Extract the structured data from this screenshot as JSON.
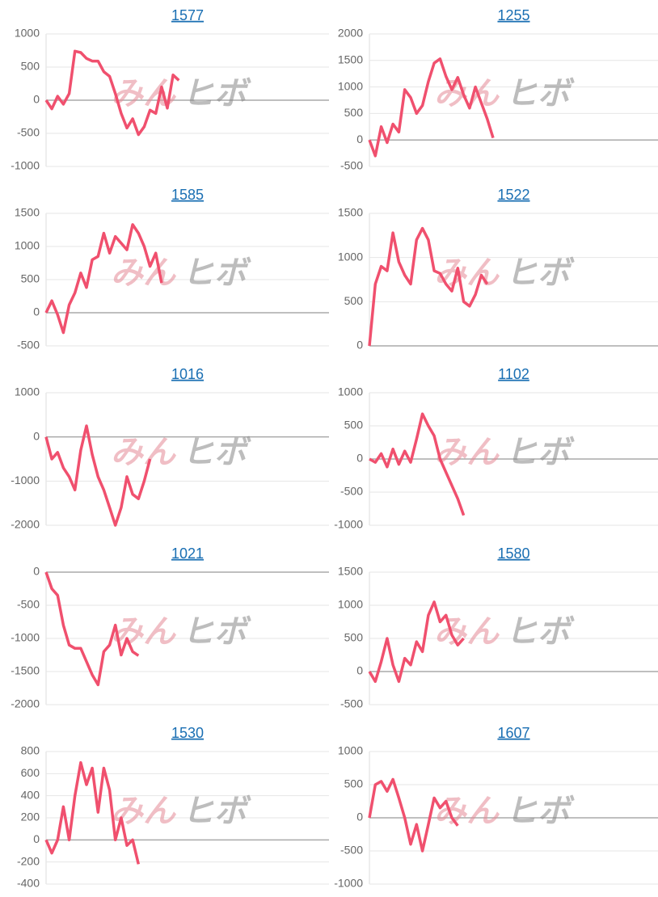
{
  "watermark": [
    "みん",
    "ヒボ"
  ],
  "chart_data": [
    {
      "type": "line",
      "title": "1577",
      "color": "#f0506e",
      "ylim": [
        -1000,
        1000
      ],
      "yticks": [
        -1000,
        -500,
        0,
        500,
        1000
      ],
      "values": [
        0,
        -130,
        60,
        -60,
        100,
        740,
        720,
        630,
        590,
        590,
        430,
        360,
        100,
        -200,
        -420,
        -280,
        -520,
        -400,
        -150,
        -200,
        200,
        -120,
        380,
        300,
        null,
        null,
        null,
        null,
        null,
        null,
        null,
        null,
        null,
        null,
        null,
        null,
        null,
        null,
        null,
        null,
        null,
        null,
        null,
        null,
        null,
        null,
        null,
        null,
        null,
        null
      ]
    },
    {
      "type": "line",
      "title": "1255",
      "color": "#f0506e",
      "ylim": [
        -500,
        2000
      ],
      "yticks": [
        -500,
        0,
        500,
        1000,
        1500,
        2000
      ],
      "values": [
        0,
        -300,
        250,
        -50,
        300,
        150,
        950,
        800,
        500,
        650,
        1100,
        1450,
        1530,
        1200,
        950,
        1180,
        850,
        600,
        1000,
        700,
        400,
        40,
        null,
        null,
        null,
        null,
        null,
        null,
        null,
        null,
        null,
        null,
        null,
        null,
        null,
        null,
        null,
        null,
        null,
        null,
        null,
        null,
        null,
        null,
        null,
        null,
        null,
        null,
        null,
        null
      ]
    },
    {
      "type": "line",
      "title": "1585",
      "color": "#f0506e",
      "ylim": [
        -500,
        1500
      ],
      "yticks": [
        -500,
        0,
        500,
        1000,
        1500
      ],
      "values": [
        0,
        180,
        -30,
        -300,
        120,
        300,
        600,
        380,
        800,
        850,
        1200,
        900,
        1150,
        1050,
        950,
        1330,
        1200,
        1000,
        700,
        900,
        450,
        null,
        null,
        null,
        null,
        null,
        null,
        null,
        null,
        null,
        null,
        null,
        null,
        null,
        null,
        null,
        null,
        null,
        null,
        null,
        null,
        null,
        null,
        null,
        null,
        null,
        null,
        null,
        null,
        null
      ]
    },
    {
      "type": "line",
      "title": "1522",
      "color": "#f0506e",
      "ylim": [
        0,
        1500
      ],
      "yticks": [
        0,
        500,
        1000,
        1500
      ],
      "values": [
        0,
        700,
        900,
        850,
        1280,
        950,
        800,
        700,
        1200,
        1330,
        1200,
        850,
        820,
        700,
        620,
        880,
        500,
        450,
        580,
        800,
        700,
        null,
        null,
        null,
        null,
        null,
        null,
        null,
        null,
        null,
        null,
        null,
        null,
        null,
        null,
        null,
        null,
        null,
        null,
        null,
        null,
        null,
        null,
        null,
        null,
        null,
        null,
        null,
        null,
        null
      ]
    },
    {
      "type": "line",
      "title": "1016",
      "color": "#f0506e",
      "ylim": [
        -2000,
        1000
      ],
      "yticks": [
        -2000,
        -1000,
        0,
        1000
      ],
      "values": [
        0,
        -500,
        -350,
        -700,
        -900,
        -1200,
        -300,
        250,
        -400,
        -900,
        -1200,
        -1600,
        -2000,
        -1600,
        -900,
        -1300,
        -1400,
        -1000,
        -500,
        null,
        null,
        null,
        null,
        null,
        null,
        null,
        null,
        null,
        null,
        null,
        null,
        null,
        null,
        null,
        null,
        null,
        null,
        null,
        null,
        null,
        null,
        null,
        null,
        null,
        null,
        null,
        null,
        null,
        null,
        null
      ]
    },
    {
      "type": "line",
      "title": "1102",
      "color": "#f0506e",
      "ylim": [
        -1000,
        1000
      ],
      "yticks": [
        -1000,
        -500,
        0,
        500,
        1000
      ],
      "values": [
        0,
        -50,
        80,
        -120,
        150,
        -80,
        120,
        -50,
        300,
        680,
        500,
        350,
        0,
        -200,
        -400,
        -600,
        -850,
        null,
        null,
        null,
        null,
        null,
        null,
        null,
        null,
        null,
        null,
        null,
        null,
        null,
        null,
        null,
        null,
        null,
        null,
        null,
        null,
        null,
        null,
        null,
        null,
        null,
        null,
        null,
        null,
        null,
        null,
        null,
        null,
        null
      ]
    },
    {
      "type": "line",
      "title": "1021",
      "color": "#f0506e",
      "ylim": [
        -2000,
        0
      ],
      "yticks": [
        -2000,
        -1500,
        -1000,
        -500,
        0
      ],
      "values": [
        0,
        -250,
        -350,
        -800,
        -1100,
        -1150,
        -1150,
        -1350,
        -1550,
        -1700,
        -1200,
        -1100,
        -800,
        -1250,
        -1000,
        -1200,
        -1260,
        null,
        null,
        null,
        null,
        null,
        null,
        null,
        null,
        null,
        null,
        null,
        null,
        null,
        null,
        null,
        null,
        null,
        null,
        null,
        null,
        null,
        null,
        null,
        null,
        null,
        null,
        null,
        null,
        null,
        null,
        null,
        null,
        null
      ]
    },
    {
      "type": "line",
      "title": "1580",
      "color": "#f0506e",
      "ylim": [
        -500,
        1500
      ],
      "yticks": [
        -500,
        0,
        500,
        1000,
        1500
      ],
      "values": [
        0,
        -150,
        150,
        500,
        100,
        -150,
        200,
        100,
        450,
        300,
        850,
        1050,
        750,
        850,
        550,
        400,
        500,
        null,
        null,
        null,
        null,
        null,
        null,
        null,
        null,
        null,
        null,
        null,
        null,
        null,
        null,
        null,
        null,
        null,
        null,
        null,
        null,
        null,
        null,
        null,
        null,
        null,
        null,
        null,
        null,
        null,
        null,
        null,
        null,
        null
      ]
    },
    {
      "type": "line",
      "title": "1530",
      "color": "#f0506e",
      "ylim": [
        -400,
        800
      ],
      "yticks": [
        -400,
        -200,
        0,
        200,
        400,
        600,
        800
      ],
      "values": [
        0,
        -120,
        0,
        300,
        0,
        400,
        700,
        500,
        650,
        250,
        650,
        450,
        0,
        200,
        -50,
        0,
        -220,
        null,
        null,
        null,
        null,
        null,
        null,
        null,
        null,
        null,
        null,
        null,
        null,
        null,
        null,
        null,
        null,
        null,
        null,
        null,
        null,
        null,
        null,
        null,
        null,
        null,
        null,
        null,
        null,
        null,
        null,
        null,
        null,
        null
      ]
    },
    {
      "type": "line",
      "title": "1607",
      "color": "#f0506e",
      "ylim": [
        -1000,
        1000
      ],
      "yticks": [
        -1000,
        -500,
        0,
        500,
        1000
      ],
      "values": [
        0,
        500,
        550,
        400,
        580,
        300,
        0,
        -400,
        -100,
        -500,
        -100,
        300,
        150,
        250,
        0,
        -120,
        null,
        null,
        null,
        null,
        null,
        null,
        null,
        null,
        null,
        null,
        null,
        null,
        null,
        null,
        null,
        null,
        null,
        null,
        null,
        null,
        null,
        null,
        null,
        null,
        null,
        null,
        null,
        null,
        null,
        null,
        null,
        null,
        null,
        null
      ]
    }
  ]
}
